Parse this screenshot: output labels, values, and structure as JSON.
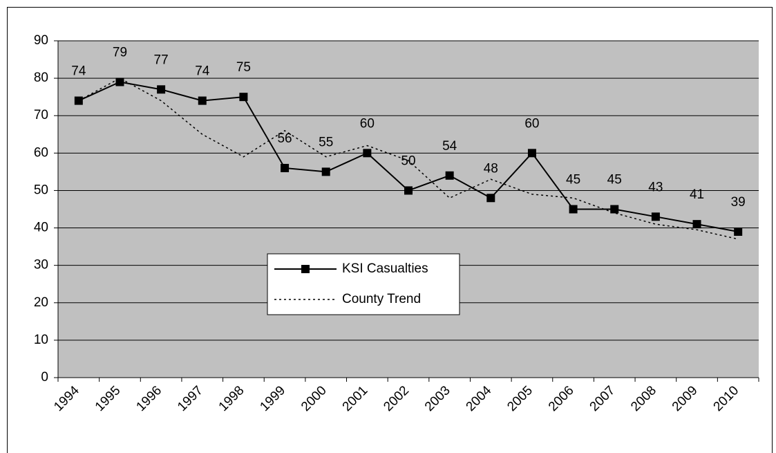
{
  "chart_data": {
    "type": "line",
    "categories": [
      "1994",
      "1995",
      "1996",
      "1997",
      "1998",
      "1999",
      "2000",
      "2001",
      "2002",
      "2003",
      "2004",
      "2005",
      "2006",
      "2007",
      "2008",
      "2009",
      "2010"
    ],
    "series": [
      {
        "name": "KSI Casualties",
        "color": "#000000",
        "style": "solid",
        "marker": "square",
        "data_labels": true,
        "values": [
          74,
          79,
          77,
          74,
          75,
          56,
          55,
          60,
          50,
          54,
          48,
          60,
          45,
          45,
          43,
          41,
          39
        ]
      },
      {
        "name": "County Trend",
        "color": "#000000",
        "style": "dotted",
        "marker": "none",
        "data_labels": false,
        "values": [
          74,
          80,
          74,
          65,
          59,
          66,
          59,
          62,
          58,
          48,
          53,
          49,
          48,
          44,
          41,
          39.5,
          37
        ]
      }
    ],
    "ylim": [
      0,
      90
    ],
    "yticks": [
      0,
      10,
      20,
      30,
      40,
      50,
      60,
      70,
      80,
      90
    ],
    "grid": true,
    "plot_background": "#c0c0c0",
    "legend": "center"
  }
}
